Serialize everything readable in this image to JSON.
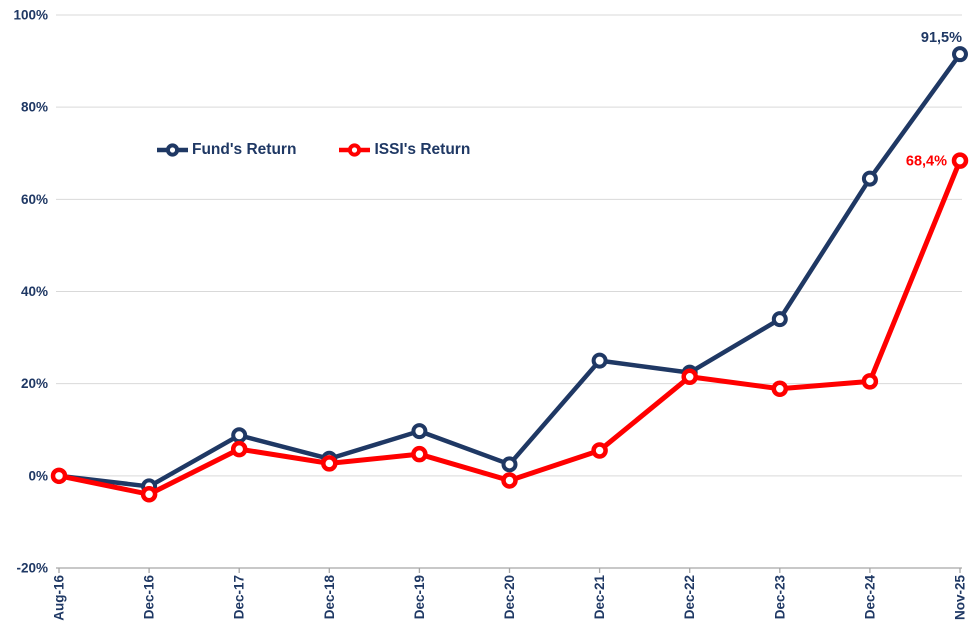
{
  "chart_data": {
    "type": "line",
    "title": "",
    "xlabel": "",
    "ylabel": "",
    "categories": [
      "Aug-16",
      "Dec-16",
      "Dec-17",
      "Dec-18",
      "Dec-19",
      "Dec-20",
      "Dec-21",
      "Dec-22",
      "Dec-23",
      "Dec-24",
      "Nov-25"
    ],
    "series": [
      {
        "name": "Fund's Return",
        "color": "#1F3864",
        "values": [
          0.0,
          -2.3,
          8.8,
          3.7,
          9.7,
          2.5,
          25.0,
          22.4,
          34.0,
          64.5,
          91.5
        ],
        "end_label": "91,5%"
      },
      {
        "name": "ISSI's Return",
        "color": "#FF0000",
        "values": [
          0.0,
          -4.0,
          5.8,
          2.7,
          4.7,
          -1.0,
          5.5,
          21.5,
          18.9,
          20.5,
          68.4
        ],
        "end_label": "68,4%"
      }
    ],
    "ylim": [
      -20,
      100
    ],
    "yticks": [
      {
        "value": 100,
        "label": "100%"
      },
      {
        "value": 80,
        "label": "80%"
      },
      {
        "value": 60,
        "label": "60%"
      },
      {
        "value": 40,
        "label": "40%"
      },
      {
        "value": 20,
        "label": "20%"
      },
      {
        "value": 0,
        "label": "0%"
      },
      {
        "value": -20,
        "label": "-20%"
      }
    ],
    "grid": true,
    "legend_position": "inside-top-left",
    "marker_style": "open-circle",
    "colors": {
      "gridline": "#D9D9D9",
      "axis_line": "#A6A6A6",
      "label": "#1F3864",
      "background": "#FFFFFF"
    }
  }
}
